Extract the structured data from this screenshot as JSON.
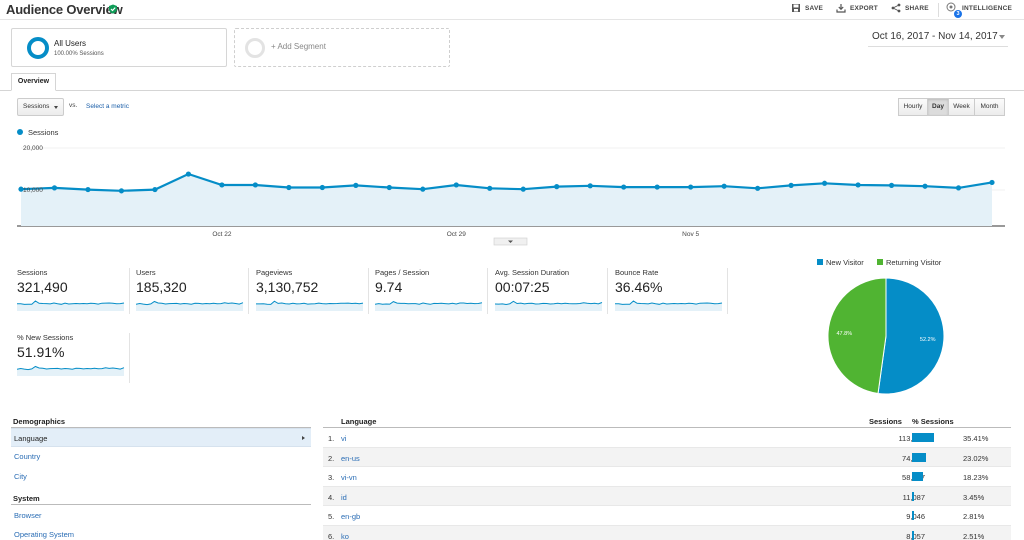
{
  "header": {
    "title": "Audience Overview",
    "save_label": "SAVE",
    "export_label": "EXPORT",
    "share_label": "SHARE",
    "intelligence_label": "INTELLIGENCE",
    "intelligence_badge": "3"
  },
  "segment": {
    "name": "All Users",
    "sub": "100.00% Sessions",
    "add_label": "+ Add Segment"
  },
  "date_range": "Oct 16, 2017 - Nov 14, 2017",
  "tabs": [
    {
      "label": "Overview"
    }
  ],
  "controls": {
    "metric_select": "Sessions",
    "vs_label": "vs.",
    "select_metric_link": "Select a metric",
    "granularity": [
      {
        "label": "Hourly",
        "active": false
      },
      {
        "label": "Day",
        "active": true
      },
      {
        "label": "Week",
        "active": false
      },
      {
        "label": "Month",
        "active": false
      }
    ]
  },
  "colors": {
    "primary": "#058dc7",
    "secondary": "#50b432",
    "link": "#2a6db5"
  },
  "chart_data": [
    {
      "type": "area",
      "series": [
        {
          "name": "Sessions",
          "values": [
            10200,
            10500,
            10100,
            9800,
            10100,
            13800,
            11200,
            11200,
            10600,
            10600,
            11100,
            10600,
            10200,
            11200,
            10400,
            10200,
            10800,
            11000,
            10700,
            10700,
            10700,
            10900,
            10400,
            11100,
            11600,
            11200,
            11100,
            10900,
            10500,
            11800
          ]
        }
      ],
      "x": [
        "Oct 16",
        "Oct 17",
        "Oct 18",
        "Oct 19",
        "Oct 20",
        "Oct 21",
        "Oct 22",
        "Oct 23",
        "Oct 24",
        "Oct 25",
        "Oct 26",
        "Oct 27",
        "Oct 28",
        "Oct 29",
        "Oct 30",
        "Oct 31",
        "Nov 1",
        "Nov 2",
        "Nov 3",
        "Nov 4",
        "Nov 5",
        "Nov 6",
        "Nov 7",
        "Nov 8",
        "Nov 9",
        "Nov 10",
        "Nov 11",
        "Nov 12",
        "Nov 13",
        "Nov 14"
      ],
      "xticks": [
        "Oct 22",
        "Oct 29",
        "Nov 5"
      ],
      "yticks": [
        "20,000",
        "10,000"
      ],
      "ylim": [
        0,
        20000
      ],
      "legend": "top-left"
    },
    {
      "type": "pie",
      "slices": [
        {
          "name": "New Visitor",
          "value": 52.2,
          "label": "52.2%",
          "color": "#058dc7"
        },
        {
          "name": "Returning Visitor",
          "value": 47.8,
          "label": "47.8%",
          "color": "#50b432"
        }
      ],
      "legend": "top"
    }
  ],
  "scorecards": [
    {
      "label": "Sessions",
      "value": "321,490"
    },
    {
      "label": "Users",
      "value": "185,320"
    },
    {
      "label": "Pageviews",
      "value": "3,130,752"
    },
    {
      "label": "Pages / Session",
      "value": "9.74"
    },
    {
      "label": "Avg. Session Duration",
      "value": "00:07:25"
    },
    {
      "label": "Bounce Rate",
      "value": "36.46%"
    },
    {
      "label": "% New Sessions",
      "value": "51.91%"
    }
  ],
  "demographics": {
    "title": "Demographics",
    "items": [
      {
        "label": "Language",
        "selected": true
      },
      {
        "label": "Country",
        "selected": false
      },
      {
        "label": "City",
        "selected": false
      }
    ],
    "system_title": "System",
    "system_items": [
      {
        "label": "Browser"
      },
      {
        "label": "Operating System"
      }
    ]
  },
  "language_table": {
    "col_language": "Language",
    "col_sessions": "Sessions",
    "col_pct": "% Sessions",
    "rows": [
      {
        "idx": "1.",
        "name": "vi",
        "sessions": "113,828",
        "pct": "35.41%",
        "pct_value": 35.41
      },
      {
        "idx": "2.",
        "name": "en-us",
        "sessions": "74,009",
        "pct": "23.02%",
        "pct_value": 23.02
      },
      {
        "idx": "3.",
        "name": "vi-vn",
        "sessions": "58,617",
        "pct": "18.23%",
        "pct_value": 18.23
      },
      {
        "idx": "4.",
        "name": "id",
        "sessions": "11,087",
        "pct": "3.45%",
        "pct_value": 3.45
      },
      {
        "idx": "5.",
        "name": "en-gb",
        "sessions": "9,046",
        "pct": "2.81%",
        "pct_value": 2.81
      },
      {
        "idx": "6.",
        "name": "ko",
        "sessions": "8,057",
        "pct": "2.51%",
        "pct_value": 2.51
      }
    ]
  }
}
